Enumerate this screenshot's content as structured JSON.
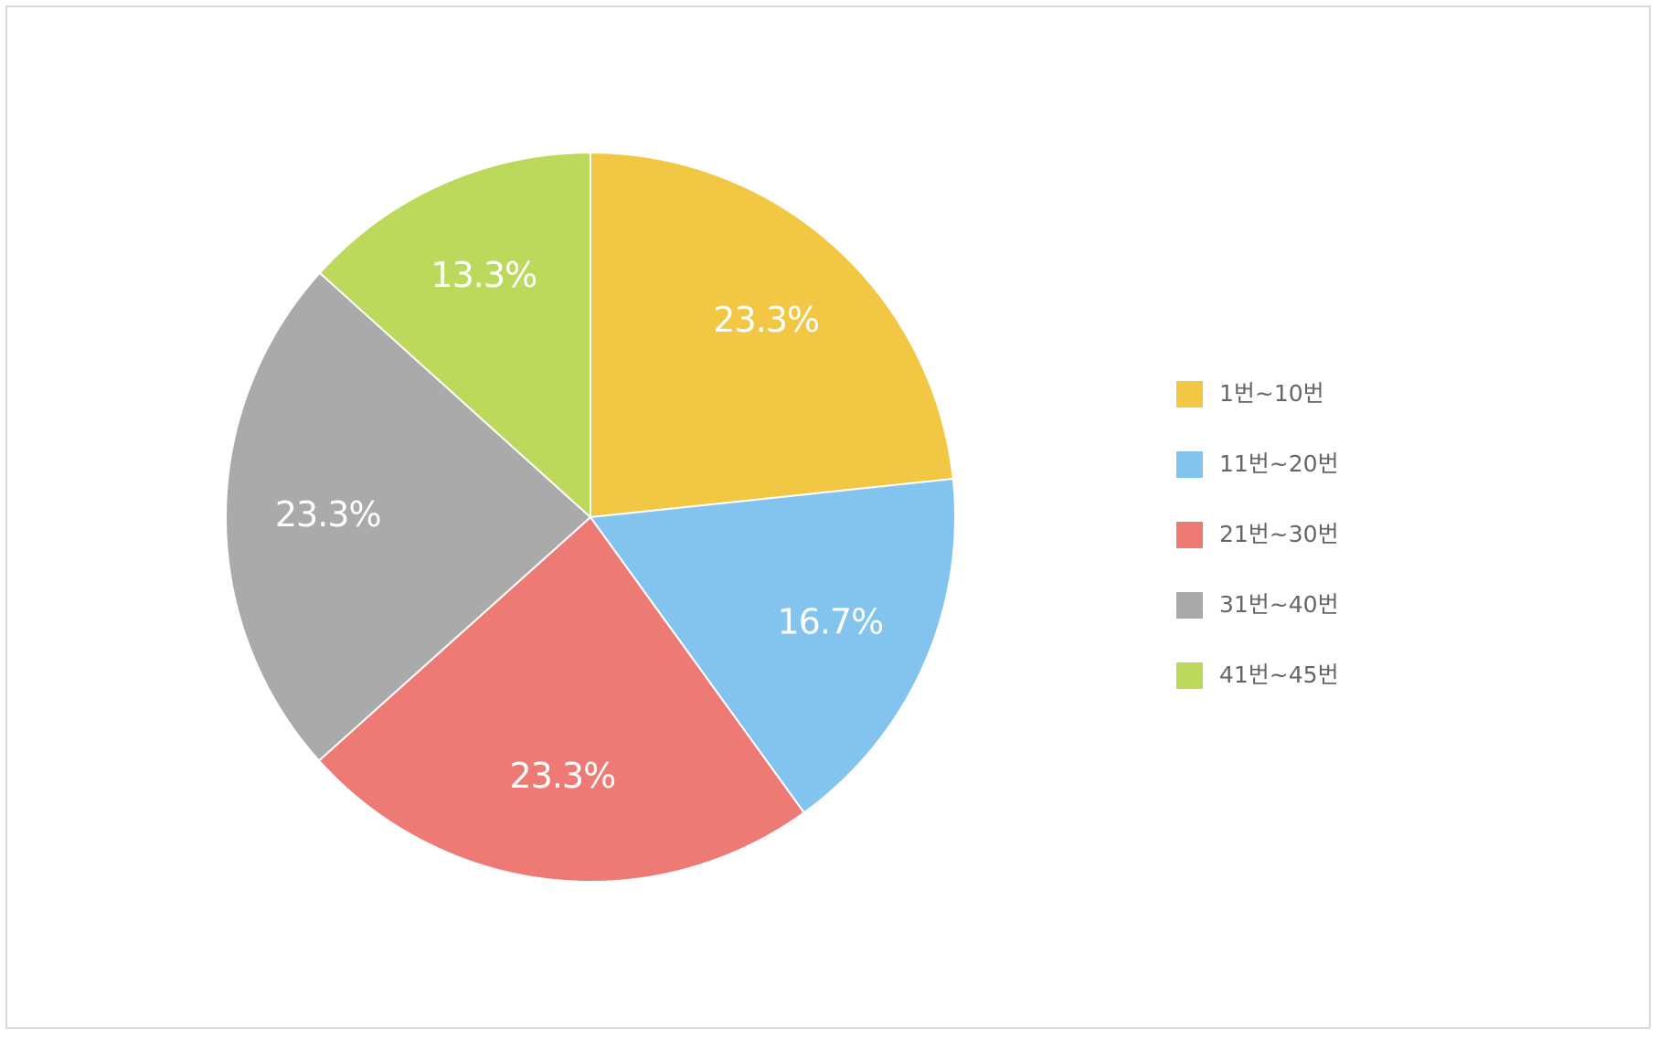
{
  "chart_data": {
    "type": "pie",
    "categories": [
      "1번~10번",
      "11번~20번",
      "21번~30번",
      "31번~40번",
      "41번~45번"
    ],
    "values": [
      23.3,
      16.7,
      23.3,
      23.3,
      13.3
    ],
    "value_labels": [
      "23.3%",
      "16.7%",
      "23.3%",
      "23.3%",
      "13.3%"
    ],
    "colors": [
      "#f2c744",
      "#82c4ee",
      "#ee7a76",
      "#aaaaaa",
      "#bcd95c"
    ],
    "legend": "right"
  }
}
